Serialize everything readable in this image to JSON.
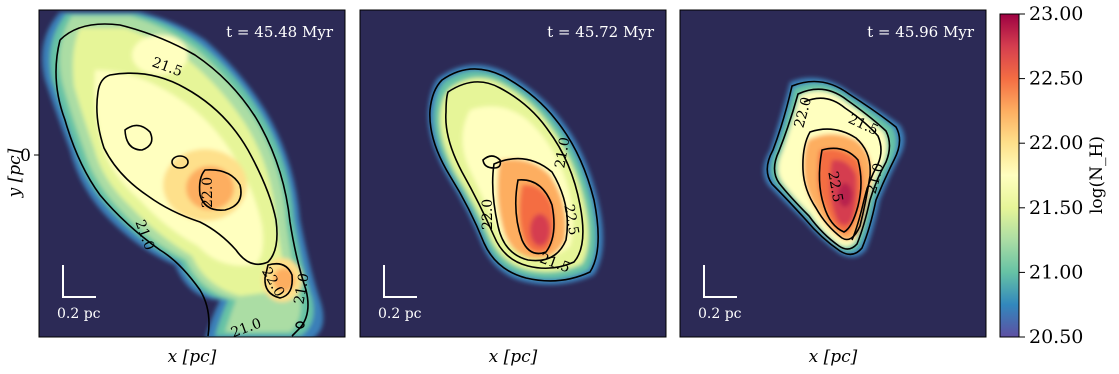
{
  "chart_data": {
    "type": "heatmap",
    "colormap": "Spectral_r",
    "colorbar": {
      "label": "log(N_H)",
      "range": [
        20.5,
        23.0
      ],
      "ticks": [
        "23.00",
        "22.50",
        "22.00",
        "21.50",
        "21.00",
        "20.50"
      ]
    },
    "contour_levels": [
      21.0,
      21.5,
      22.0,
      22.5
    ],
    "panels": [
      {
        "time_label": "t = 45.48 Myr",
        "xlabel": "x [pc]",
        "ylabel": "y [pc]",
        "ytick": "0",
        "scale_bar": "0.2 pc",
        "contour_labels": [
          "21.5",
          "22.0",
          "22.0",
          "21.0",
          "21.0",
          "21.0"
        ],
        "peak": 22.1
      },
      {
        "time_label": "t = 45.72 Myr",
        "xlabel": "x [pc]",
        "scale_bar": "0.2 pc",
        "contour_labels": [
          "21.0",
          "22.0",
          "22.5",
          "21.5"
        ],
        "peak": 22.7
      },
      {
        "time_label": "t = 45.96 Myr",
        "xlabel": "x [pc]",
        "scale_bar": "0.2 pc",
        "contour_labels": [
          "22.0",
          "21.5",
          "22.5",
          "21.0"
        ],
        "peak": 22.9
      }
    ]
  },
  "colors": {
    "background": "#2c2a56",
    "text_on_panel": "#ffffff"
  }
}
